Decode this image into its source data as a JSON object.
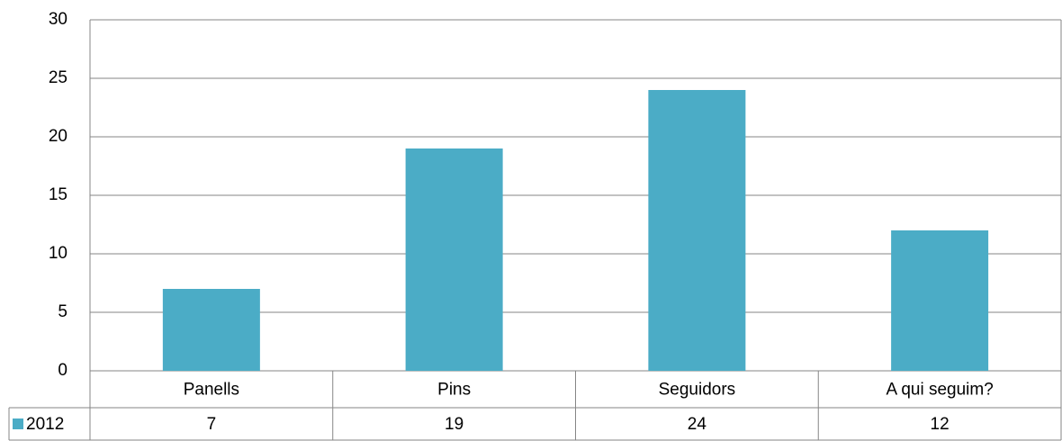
{
  "chart_data": {
    "type": "bar",
    "categories": [
      "Panells",
      "Pins",
      "Seguidors",
      "A qui seguim?"
    ],
    "series": [
      {
        "name": "2012",
        "color": "#4bacc6",
        "values": [
          7,
          19,
          24,
          12
        ]
      }
    ],
    "ylim": [
      0,
      30
    ],
    "yticks": [
      0,
      5,
      10,
      15,
      20,
      25,
      30
    ],
    "grid": true,
    "legend": "data-table"
  }
}
